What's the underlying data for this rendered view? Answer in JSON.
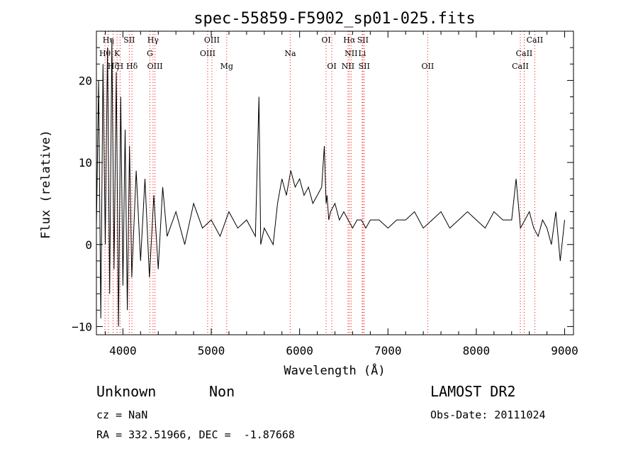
{
  "chart_data": {
    "type": "line",
    "title": "spec-55859-F5902_sp01-025.fits",
    "xlabel": "Wavelength (Å)",
    "ylabel": "Flux (relative)",
    "xlim": [
      3700,
      9100
    ],
    "ylim": [
      -11,
      26
    ],
    "xticks": [
      4000,
      5000,
      6000,
      7000,
      8000,
      9000
    ],
    "yticks": [
      -10,
      0,
      10,
      20
    ],
    "grid": false,
    "line_color": "#000000",
    "marker_color": "#ff0000",
    "spectrum": {
      "x": [
        3700,
        3725,
        3750,
        3775,
        3800,
        3825,
        3850,
        3875,
        3900,
        3925,
        3950,
        3975,
        4000,
        4025,
        4050,
        4075,
        4100,
        4150,
        4200,
        4250,
        4300,
        4350,
        4400,
        4450,
        4500,
        4600,
        4700,
        4800,
        4900,
        5000,
        5100,
        5200,
        5300,
        5400,
        5500,
        5540,
        5560,
        5600,
        5700,
        5720,
        5750,
        5800,
        5850,
        5900,
        5950,
        6000,
        6050,
        6100,
        6150,
        6200,
        6250,
        6280,
        6300,
        6310,
        6330,
        6350,
        6400,
        6450,
        6500,
        6550,
        6600,
        6650,
        6700,
        6750,
        6800,
        6900,
        7000,
        7100,
        7200,
        7300,
        7400,
        7500,
        7600,
        7700,
        7800,
        7900,
        8000,
        8100,
        8200,
        8300,
        8400,
        8450,
        8500,
        8550,
        8600,
        8650,
        8700,
        8750,
        8800,
        8850,
        8900,
        8950,
        9000
      ],
      "y": [
        2,
        20,
        -9,
        22,
        0,
        24,
        -6,
        25,
        -3,
        21,
        -10,
        18,
        -5,
        14,
        -8,
        12,
        -4,
        9,
        -2,
        8,
        -4,
        6,
        -3,
        7,
        1,
        4,
        0,
        5,
        2,
        3,
        1,
        4,
        2,
        3,
        1,
        18,
        0,
        2,
        0,
        2,
        5,
        8,
        6,
        9,
        7,
        8,
        6,
        7,
        5,
        6,
        7,
        12,
        5,
        6,
        3,
        4,
        5,
        3,
        4,
        3,
        2,
        3,
        3,
        2,
        3,
        3,
        2,
        3,
        3,
        4,
        2,
        3,
        4,
        2,
        3,
        4,
        3,
        2,
        4,
        3,
        3,
        8,
        2,
        3,
        4,
        2,
        1,
        3,
        2,
        0,
        4,
        -2,
        3
      ]
    },
    "line_markers": [
      {
        "label": "Hη",
        "x": 3835,
        "row": 0
      },
      {
        "label": "Hθ",
        "x": 3797,
        "row": 1
      },
      {
        "label": "K",
        "x": 3934,
        "row": 1
      },
      {
        "label": "Hζ",
        "x": 3889,
        "row": 2
      },
      {
        "label": "H",
        "x": 3968,
        "row": 2
      },
      {
        "label": "SII",
        "x": 4072,
        "row": 0
      },
      {
        "label": "Hδ",
        "x": 4102,
        "row": 2
      },
      {
        "label": "Hγ",
        "x": 4341,
        "row": 0
      },
      {
        "label": "G",
        "x": 4305,
        "row": 1
      },
      {
        "label": "OIII",
        "x": 4363,
        "row": 2
      },
      {
        "label": "OIII",
        "x": 5007,
        "row": 0
      },
      {
        "label": "OIII",
        "x": 4959,
        "row": 1
      },
      {
        "label": "Mg",
        "x": 5175,
        "row": 2
      },
      {
        "label": "Na",
        "x": 5894,
        "row": 1
      },
      {
        "label": "OI",
        "x": 6300,
        "row": 0
      },
      {
        "label": "OI",
        "x": 6364,
        "row": 2
      },
      {
        "label": "Hα",
        "x": 6563,
        "row": 0
      },
      {
        "label": "SII",
        "x": 6716,
        "row": 0
      },
      {
        "label": "NII",
        "x": 6583,
        "row": 1
      },
      {
        "label": "Li",
        "x": 6708,
        "row": 1
      },
      {
        "label": "NII",
        "x": 6548,
        "row": 2
      },
      {
        "label": "SII",
        "x": 6731,
        "row": 2
      },
      {
        "label": "OII",
        "x": 7450,
        "row": 2
      },
      {
        "label": "CaII",
        "x": 8662,
        "row": 0
      },
      {
        "label": "CaII",
        "x": 8542,
        "row": 1
      },
      {
        "label": "CaII",
        "x": 8498,
        "row": 2
      }
    ]
  },
  "info": {
    "class": "Unknown",
    "subclass": "Non",
    "cz": "cz = NaN",
    "coords": "RA = 332.51966, DEC =  -1.87668",
    "survey": "LAMOST DR2",
    "obs_date": "Obs-Date: 20111024"
  }
}
